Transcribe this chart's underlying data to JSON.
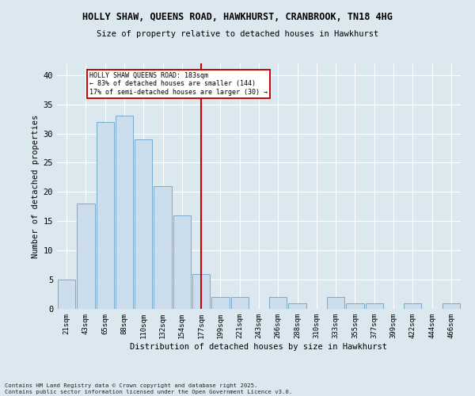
{
  "title_line1": "HOLLY SHAW, QUEENS ROAD, HAWKHURST, CRANBROOK, TN18 4HG",
  "title_line2": "Size of property relative to detached houses in Hawkhurst",
  "xlabel": "Distribution of detached houses by size in Hawkhurst",
  "ylabel": "Number of detached properties",
  "categories": [
    "21sqm",
    "43sqm",
    "65sqm",
    "88sqm",
    "110sqm",
    "132sqm",
    "154sqm",
    "177sqm",
    "199sqm",
    "221sqm",
    "243sqm",
    "266sqm",
    "288sqm",
    "310sqm",
    "333sqm",
    "355sqm",
    "377sqm",
    "399sqm",
    "422sqm",
    "444sqm",
    "466sqm"
  ],
  "values": [
    5,
    18,
    32,
    33,
    29,
    21,
    16,
    6,
    2,
    2,
    0,
    2,
    1,
    0,
    2,
    1,
    1,
    0,
    1,
    0,
    1
  ],
  "bar_color": "#ccdded",
  "bar_edge_color": "#7aaac8",
  "vline_index": 7,
  "vline_color": "#cc0000",
  "annotation_title": "HOLLY SHAW QUEENS ROAD: 183sqm",
  "annotation_line2": "← 83% of detached houses are smaller (144)",
  "annotation_line3": "17% of semi-detached houses are larger (30) →",
  "annotation_box_edgecolor": "#cc0000",
  "background_color": "#dce8f0",
  "grid_color": "#ffffff",
  "ylim": [
    0,
    42
  ],
  "yticks": [
    0,
    5,
    10,
    15,
    20,
    25,
    30,
    35,
    40
  ],
  "footer_line1": "Contains HM Land Registry data © Crown copyright and database right 2025.",
  "footer_line2": "Contains public sector information licensed under the Open Government Licence v3.0."
}
